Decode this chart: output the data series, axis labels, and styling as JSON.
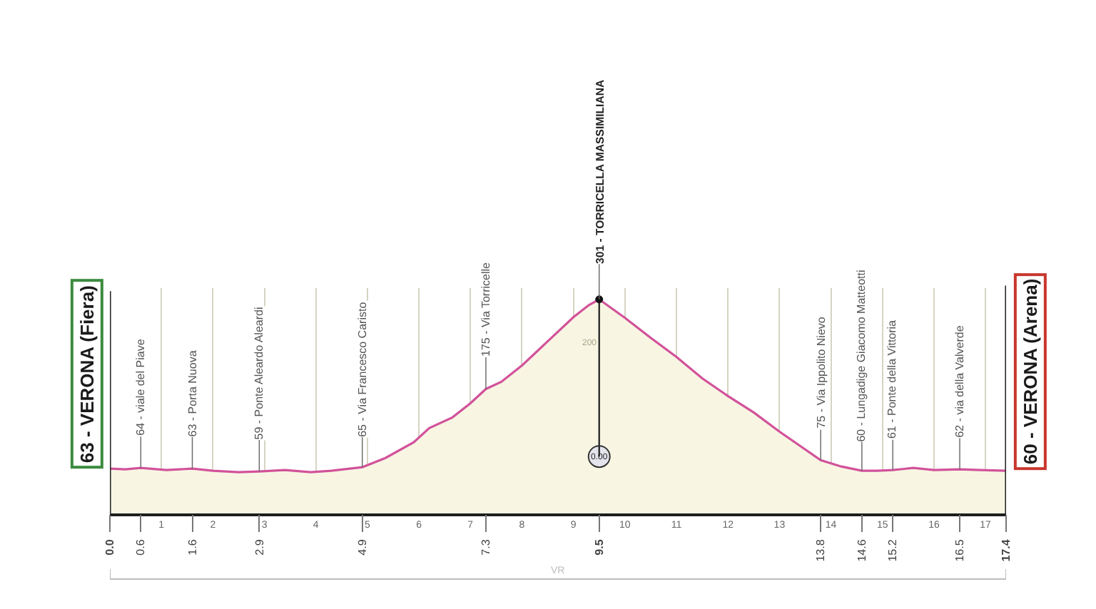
{
  "chart_data": {
    "type": "area",
    "x": [
      0,
      0.3,
      0.6,
      1.1,
      1.6,
      2.0,
      2.5,
      2.9,
      3.4,
      3.9,
      4.3,
      4.9,
      5.35,
      5.9,
      6.2,
      6.65,
      7.0,
      7.3,
      7.6,
      8.0,
      8.5,
      9.0,
      9.3,
      9.5,
      10.0,
      10.5,
      11.0,
      11.5,
      12.0,
      12.5,
      13.0,
      13.4,
      13.8,
      14.2,
      14.6,
      14.9,
      15.2,
      15.6,
      16.0,
      16.5,
      16.9,
      17.4
    ],
    "values": [
      63,
      62,
      64,
      61,
      63,
      60,
      58,
      59,
      61,
      58,
      60,
      65,
      78,
      100,
      120,
      135,
      155,
      175,
      185,
      208,
      242,
      276,
      293,
      301,
      275,
      247,
      220,
      190,
      165,
      142,
      115,
      95,
      75,
      66,
      60,
      60,
      61,
      64,
      61,
      62,
      61,
      60
    ],
    "value_labels": [
      "63 - VERONA (Fiera)",
      null,
      "64 - viale del Piave",
      null,
      "63 - Porta Nuova",
      null,
      null,
      "59 - Ponte Aleardo Aleardi",
      null,
      null,
      null,
      "65 - Via Francesco Caristo",
      null,
      null,
      null,
      null,
      null,
      "175 - Via Torricelle",
      null,
      null,
      null,
      null,
      null,
      "301 - TORRICELLA MASSIMILIANA",
      null,
      null,
      null,
      null,
      null,
      null,
      null,
      null,
      "75 - Via Ippolito Nievo",
      null,
      "60 - Lungadige Giacomo Matteotti",
      null,
      "61 - Ponte della Vittoria",
      null,
      null,
      "62 - via della Valverde",
      null,
      "60 - VERONA (Arena)"
    ],
    "color": "#f8f6e3",
    "xlim": [
      0,
      17.4
    ],
    "xticks": [
      1,
      2,
      3,
      4,
      5,
      6,
      7,
      8,
      9,
      10,
      11,
      12,
      13,
      14,
      15,
      16,
      17
    ],
    "x2lim": [
      0,
      17.4
    ],
    "x2ticks": [
      {
        "value": 0,
        "label": "0.0"
      },
      0.6,
      1.6,
      2.9,
      4.9,
      7.3,
      9.5,
      13.8,
      14.6,
      15.2,
      16.5,
      17.4
    ],
    "tick_labels": "x",
    "grid": "x",
    "annotations": [
      {
        "text": "0.00",
        "x": 9.5,
        "y": 80
      },
      "200"
    ],
    "ref_lines": [
      {
        "axis": "x",
        "value": 0
      },
      {
        "axis": "x",
        "value": 9.5
      },
      {
        "axis": "x",
        "value": 17.4
      }
    ],
    "bands": [
      {
        "axis": "x",
        "from": 0,
        "to": 17.4,
        "label": "VR"
      }
    ]
  }
}
